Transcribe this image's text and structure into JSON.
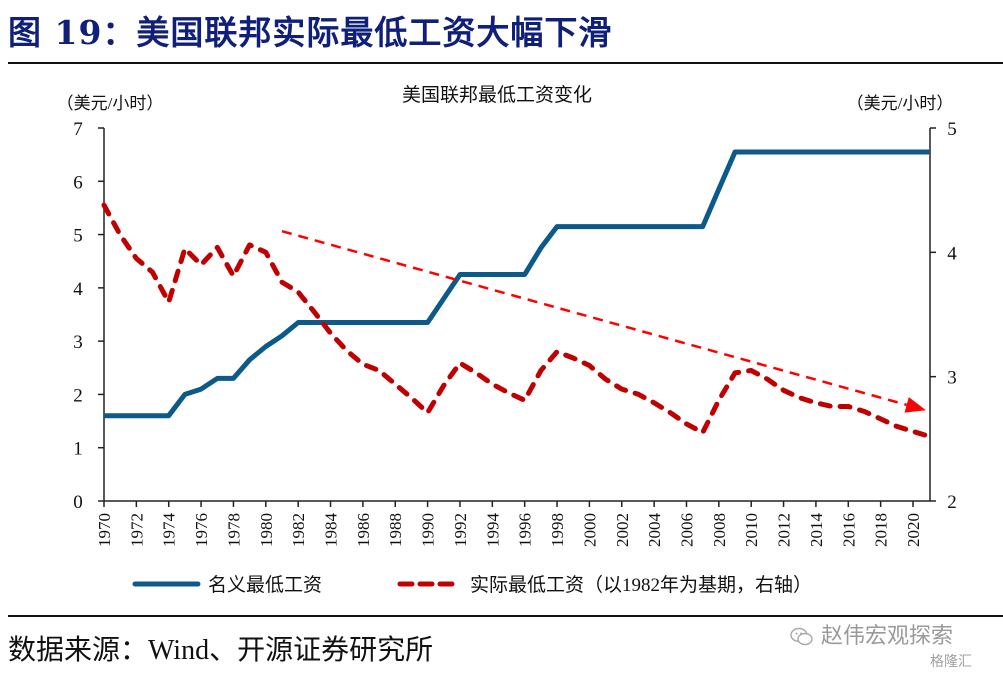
{
  "figure": {
    "title": "图 19：美国联邦实际最低工资大幅下滑",
    "source": "数据来源：Wind、开源证券研究所",
    "watermark_text": "赵伟宏观探索",
    "watermark_sub": "格隆汇",
    "watermark_icon": "wechat-icon"
  },
  "chart_data": {
    "type": "line",
    "title": "美国联邦最低工资变化",
    "ylabel_left": "（美元/小时）",
    "ylabel_right": "（美元/小时）",
    "xlabel": "",
    "xlim": [
      1970,
      2021
    ],
    "ylim_left": [
      0,
      7
    ],
    "ylim_right": [
      2,
      5
    ],
    "yticks_left": [
      "0",
      "1",
      "2",
      "3",
      "4",
      "5",
      "6",
      "7"
    ],
    "yticks_right": [
      "2",
      "3",
      "4",
      "5"
    ],
    "xticks": [
      "1970",
      "1972",
      "1974",
      "1976",
      "1978",
      "1980",
      "1982",
      "1984",
      "1986",
      "1988",
      "1990",
      "1992",
      "1994",
      "1996",
      "1998",
      "2000",
      "2002",
      "2004",
      "2006",
      "2008",
      "2010",
      "2012",
      "2014",
      "2016",
      "2018",
      "2020"
    ],
    "grid": false,
    "legend_position": "bottom",
    "x": [
      1970,
      1971,
      1972,
      1973,
      1974,
      1975,
      1976,
      1977,
      1978,
      1979,
      1980,
      1981,
      1982,
      1983,
      1984,
      1985,
      1986,
      1987,
      1988,
      1989,
      1990,
      1991,
      1992,
      1993,
      1994,
      1995,
      1996,
      1997,
      1998,
      1999,
      2000,
      2001,
      2002,
      2003,
      2004,
      2005,
      2006,
      2007,
      2008,
      2009,
      2010,
      2011,
      2012,
      2013,
      2014,
      2015,
      2016,
      2017,
      2018,
      2019,
      2020,
      2021
    ],
    "series": [
      {
        "name": "名义最低工资",
        "axis": "left",
        "color": "#0b5a8a",
        "style": "solid",
        "values": [
          1.6,
          1.6,
          1.6,
          1.6,
          1.6,
          2.0,
          2.1,
          2.3,
          2.3,
          2.65,
          2.9,
          3.1,
          3.35,
          3.35,
          3.35,
          3.35,
          3.35,
          3.35,
          3.35,
          3.35,
          3.35,
          3.8,
          4.25,
          4.25,
          4.25,
          4.25,
          4.25,
          4.75,
          5.15,
          5.15,
          5.15,
          5.15,
          5.15,
          5.15,
          5.15,
          5.15,
          5.15,
          5.15,
          5.85,
          6.55,
          6.55,
          6.55,
          6.55,
          6.55,
          6.55,
          6.55,
          6.55,
          6.55,
          6.55,
          6.55,
          6.55,
          6.55
        ]
      },
      {
        "name": "实际最低工资（以1982年为基期，右轴）",
        "axis": "right",
        "color": "#c00000",
        "style": "dashed",
        "values": [
          4.38,
          4.14,
          3.95,
          3.84,
          3.6,
          4.03,
          3.9,
          4.04,
          3.81,
          4.06,
          4.0,
          3.76,
          3.68,
          3.52,
          3.35,
          3.21,
          3.1,
          3.05,
          2.94,
          2.83,
          2.71,
          2.93,
          3.11,
          3.03,
          2.94,
          2.87,
          2.81,
          3.05,
          3.2,
          3.15,
          3.09,
          2.98,
          2.9,
          2.86,
          2.79,
          2.71,
          2.62,
          2.55,
          2.81,
          3.03,
          3.05,
          2.98,
          2.89,
          2.83,
          2.79,
          2.76,
          2.76,
          2.72,
          2.66,
          2.6,
          2.56,
          2.52
        ]
      }
    ],
    "annotations": [
      {
        "type": "trend-arrow",
        "axis": "right",
        "color": "#ff0000",
        "from": [
          1981,
          4.17
        ],
        "to": [
          2020.8,
          2.73
        ]
      }
    ]
  }
}
